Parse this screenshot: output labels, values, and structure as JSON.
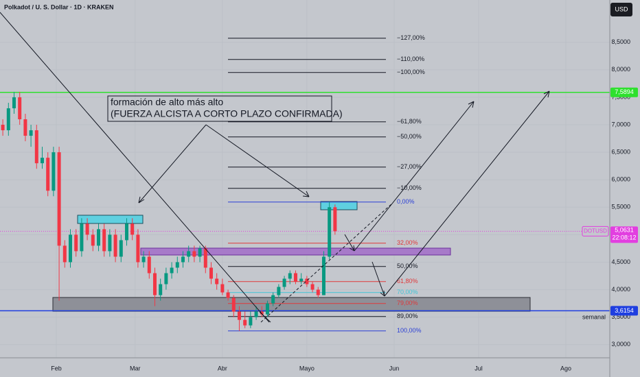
{
  "chart_data": {
    "type": "candlestick",
    "title": "Polkadot / U. S. Dollar · 1D · KRAKEN",
    "currency_button": "USD",
    "xlim": [
      11,
      227.6
    ],
    "xticks": [
      {
        "value": 31,
        "label": "Feb"
      },
      {
        "value": 59,
        "label": "Mar"
      },
      {
        "value": 90,
        "label": "Abr"
      },
      {
        "value": 120,
        "label": "Mayo"
      },
      {
        "value": 151,
        "label": "Jun"
      },
      {
        "value": 181,
        "label": "Jul"
      },
      {
        "value": 212,
        "label": "Ago"
      }
    ],
    "ylim": [
      2.76,
      9.27
    ],
    "yticks": [
      {
        "value": 3,
        "label": "3,0000"
      },
      {
        "value": 3.5,
        "label": "3,5000"
      },
      {
        "value": 4,
        "label": "4,0000"
      },
      {
        "value": 4.5,
        "label": "4,5000"
      },
      {
        "value": 5,
        "label": "5,0000"
      },
      {
        "value": 5.5,
        "label": "5,5000"
      },
      {
        "value": 6,
        "label": "6,0000"
      },
      {
        "value": 6.5,
        "label": "6,5000"
      },
      {
        "value": 7,
        "label": "7,0000"
      },
      {
        "value": 7.5,
        "label": "7,5000"
      },
      {
        "value": 8,
        "label": "8,0000"
      },
      {
        "value": 8.5,
        "label": "8,5000"
      }
    ],
    "grid": true,
    "up_color": "#089981",
    "down_color": "#f23645",
    "candles": {
      "x": [
        12,
        14,
        16,
        18,
        20,
        22,
        24,
        26,
        28,
        30,
        32,
        34,
        36,
        38,
        40,
        42,
        44,
        46,
        48,
        50,
        52,
        54,
        56,
        58,
        60,
        62,
        64,
        66,
        68,
        70,
        72,
        74,
        76,
        78,
        80,
        82,
        84,
        86,
        88,
        90,
        92,
        94,
        96,
        98,
        100,
        102,
        104,
        106,
        108,
        110,
        112,
        114,
        116,
        118,
        120,
        122,
        124,
        126,
        128,
        130
      ],
      "open": [
        7.0,
        6.9,
        7.3,
        7.5,
        7.1,
        6.8,
        6.9,
        6.3,
        6.4,
        5.8,
        6.5,
        4.8,
        4.5,
        5.0,
        4.7,
        5.2,
        5.0,
        4.8,
        5.1,
        4.7,
        5.0,
        4.6,
        4.9,
        5.2,
        5.0,
        4.5,
        4.6,
        4.3,
        3.9,
        4.1,
        4.3,
        4.4,
        4.5,
        4.6,
        4.7,
        4.6,
        4.75,
        4.4,
        4.2,
        4.1,
        3.95,
        3.85,
        3.6,
        3.45,
        3.35,
        3.5,
        3.6,
        3.55,
        3.75,
        3.9,
        4.05,
        4.2,
        4.3,
        4.15,
        4.2,
        4.1,
        4.0,
        3.9,
        4.6,
        5.5
      ],
      "high": [
        7.1,
        7.4,
        7.6,
        7.6,
        7.2,
        7.0,
        7.0,
        6.6,
        6.5,
        6.6,
        6.6,
        4.9,
        5.1,
        5.1,
        5.3,
        5.3,
        5.1,
        5.2,
        5.2,
        5.1,
        5.1,
        5.0,
        5.3,
        5.3,
        5.1,
        4.7,
        4.7,
        4.4,
        4.2,
        4.4,
        4.5,
        4.6,
        4.7,
        4.8,
        4.8,
        4.8,
        4.8,
        4.5,
        4.3,
        4.2,
        4.0,
        3.9,
        3.7,
        3.6,
        3.6,
        3.7,
        3.7,
        3.8,
        3.95,
        4.1,
        4.25,
        4.35,
        4.35,
        4.3,
        4.25,
        4.15,
        4.05,
        4.7,
        5.6,
        5.55
      ],
      "low": [
        6.8,
        6.8,
        7.2,
        7.0,
        6.7,
        6.6,
        6.2,
        6.2,
        5.7,
        5.7,
        3.8,
        4.4,
        4.4,
        4.6,
        4.6,
        4.9,
        4.7,
        4.7,
        4.6,
        4.6,
        4.5,
        4.5,
        4.8,
        4.9,
        4.4,
        4.4,
        4.2,
        3.7,
        3.8,
        4.0,
        4.2,
        4.3,
        4.4,
        4.5,
        4.5,
        4.5,
        4.3,
        4.1,
        4.0,
        3.9,
        3.8,
        3.5,
        3.25,
        3.3,
        3.3,
        3.45,
        3.5,
        3.5,
        3.7,
        3.85,
        4.0,
        4.1,
        4.1,
        4.1,
        4.05,
        3.95,
        3.85,
        3.9,
        4.55,
        5.0
      ],
      "close": [
        6.9,
        7.3,
        7.5,
        7.1,
        6.8,
        6.9,
        6.3,
        6.4,
        5.8,
        6.5,
        4.8,
        4.5,
        5.0,
        4.7,
        5.2,
        5.0,
        4.8,
        5.1,
        4.7,
        5.0,
        4.6,
        4.9,
        5.2,
        5.0,
        4.5,
        4.6,
        4.3,
        3.9,
        4.1,
        4.3,
        4.4,
        4.5,
        4.6,
        4.7,
        4.6,
        4.75,
        4.4,
        4.2,
        4.1,
        3.95,
        3.85,
        3.6,
        3.45,
        3.35,
        3.5,
        3.6,
        3.55,
        3.75,
        3.9,
        4.05,
        4.2,
        4.3,
        4.15,
        4.2,
        4.1,
        4.0,
        3.9,
        4.6,
        5.5,
        5.0631
      ]
    },
    "fib_levels": [
      {
        "label": "−127,00%",
        "value": 8.575,
        "color": "#131722"
      },
      {
        "label": "−110,00%",
        "value": 8.188,
        "color": "#131722"
      },
      {
        "label": "−100,00%",
        "value": 7.951,
        "color": "#131722"
      },
      {
        "label": "−61,80%",
        "value": 7.053,
        "color": "#131722"
      },
      {
        "label": "−50,00%",
        "value": 6.779,
        "color": "#131722"
      },
      {
        "label": "−27,00%",
        "value": 6.23,
        "color": "#131722"
      },
      {
        "label": "−10,00%",
        "value": 5.843,
        "color": "#131722"
      },
      {
        "label": "0,00%",
        "value": 5.594,
        "color": "#2a3fd6"
      },
      {
        "label": "32,00%",
        "value": 4.846,
        "color": "#e0383a"
      },
      {
        "label": "50,00%",
        "value": 4.422,
        "color": "#131722"
      },
      {
        "label": "61,80%",
        "value": 4.147,
        "color": "#e0383a"
      },
      {
        "label": "70,00%",
        "value": 3.948,
        "color": "#3fc4d6"
      },
      {
        "label": "79,00%",
        "value": 3.748,
        "color": "#e0383a"
      },
      {
        "label": "89,00%",
        "value": 3.511,
        "color": "#131722"
      },
      {
        "label": "100,00%",
        "value": 3.249,
        "color": "#2a3fd6"
      }
    ],
    "price_lines": [
      {
        "value": 7.5894,
        "label": "7,5894",
        "color": "#2ee02e"
      },
      {
        "value": 3.6154,
        "label": "3,6154",
        "color": "#1e3ee0"
      }
    ],
    "last_price": {
      "value": 5.0631,
      "label": "5,0631",
      "symbol": "DOTUSD",
      "countdown": "22:08:12",
      "color": "#e23ee0"
    },
    "annotation": [
      "formación de alto más alto",
      "(FUERZA ALCISTA A CORTO PLAZO CONFIRMADA)"
    ],
    "timeframe_label": "semanal"
  }
}
